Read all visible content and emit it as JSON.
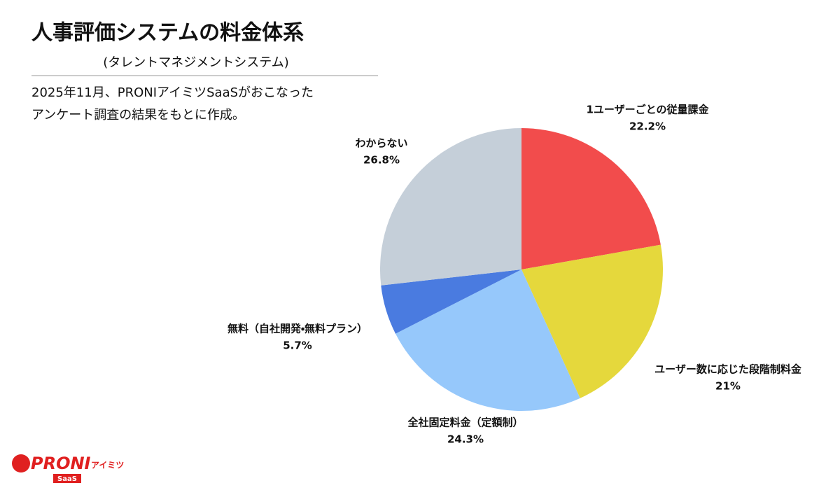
{
  "chart_data": {
    "type": "pie",
    "title": "人事評価システムの料金体系",
    "subtitle": "(タレントマネジメントシステム)",
    "note": [
      "2025年11月、PRONIアイミツSaaSがおこなった",
      "アンケート調査の結果をもとに作成。"
    ],
    "categories": [
      "1ユーザーごとの従量課金",
      "ユーザー数に応じた段階制料金",
      "全社固定料金（定額制）",
      "無料（自社開発・無料プラン）",
      "わからない"
    ],
    "values": [
      22.2,
      21,
      24.3,
      5.7,
      26.8
    ],
    "value_labels": [
      "22.2%",
      "21%",
      "24.3%",
      "5.7%",
      "26.8%"
    ],
    "colors": [
      "#f24c4c",
      "#e5d83c",
      "#96c8fb",
      "#4a7be0",
      "#c5cfd9"
    ]
  },
  "logo": {
    "brand": "PRONI",
    "sub": "アイミツ",
    "tag": "SaaS"
  }
}
